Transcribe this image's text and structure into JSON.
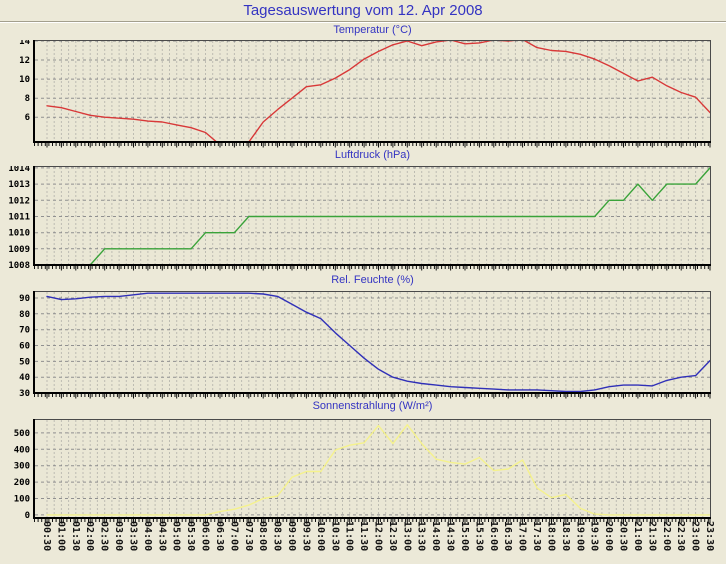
{
  "page": {
    "title": "Tagesauswertung vom 12. Apr 2008"
  },
  "colors": {
    "background": "#ECE9D8",
    "plot_background": "#EAE7D5",
    "title_blue": "#3434C2",
    "grid": "#909090",
    "axis": "#000000",
    "temperature_line": "#D83838",
    "pressure_line": "#3AA33A",
    "humidity_line": "#3030B8",
    "sun_line": "#F5F28C"
  },
  "time_labels": [
    "00:30",
    "01:00",
    "01:30",
    "02:00",
    "02:30",
    "03:00",
    "03:30",
    "04:00",
    "04:30",
    "05:00",
    "05:30",
    "06:00",
    "06:30",
    "07:00",
    "07:30",
    "08:00",
    "08:30",
    "09:00",
    "09:30",
    "10:00",
    "10:30",
    "11:00",
    "11:30",
    "12:00",
    "12:30",
    "13:00",
    "13:30",
    "14:00",
    "14:30",
    "15:00",
    "15:30",
    "16:00",
    "16:30",
    "17:00",
    "17:30",
    "18:00",
    "18:30",
    "19:00",
    "19:30",
    "20:00",
    "20:30",
    "21:00",
    "21:30",
    "22:00",
    "22:30",
    "23:00",
    "23:30"
  ],
  "chart_data": [
    {
      "type": "line",
      "title": "Temperatur (°C)",
      "unit": "°C",
      "color": "#D83838",
      "ylim": [
        3.3,
        14.1
      ],
      "yticks": [
        6,
        8,
        10,
        12,
        14
      ],
      "x": "time_labels",
      "values": [
        7.2,
        7.0,
        6.6,
        6.2,
        6.0,
        5.9,
        5.8,
        5.6,
        5.5,
        5.2,
        4.9,
        4.4,
        3.1,
        2.9,
        3.4,
        5.5,
        6.8,
        8.0,
        9.2,
        9.4,
        10.1,
        11.0,
        12.1,
        12.9,
        13.6,
        14.0,
        13.5,
        13.9,
        14.1,
        13.7,
        13.8,
        14.1,
        14.0,
        14.15,
        13.3,
        13.0,
        12.9,
        12.6,
        12.1,
        11.4,
        10.6,
        9.8,
        10.2,
        9.3,
        8.6,
        8.1,
        6.5
      ]
    },
    {
      "type": "line",
      "title": "Luftdruck (hPa)",
      "unit": "hPa",
      "color": "#3AA33A",
      "ylim": [
        1007.94,
        1014.12
      ],
      "yticks": [
        1008,
        1009,
        1010,
        1011,
        1012,
        1013,
        1014
      ],
      "x": "time_labels",
      "values": [
        1008,
        1008,
        1008,
        1008,
        1009,
        1009,
        1009,
        1009,
        1009,
        1009,
        1009,
        1010,
        1010,
        1010,
        1011,
        1011,
        1011,
        1011,
        1011,
        1011,
        1011,
        1011,
        1011,
        1011,
        1011,
        1011,
        1011,
        1011,
        1011,
        1011,
        1011,
        1011,
        1011,
        1011,
        1011,
        1011,
        1011,
        1011,
        1011,
        1012,
        1012,
        1013,
        1012,
        1013,
        1013,
        1013,
        1014
      ]
    },
    {
      "type": "line",
      "title": "Rel. Feuchte (%)",
      "unit": "%",
      "color": "#3030B8",
      "ylim": [
        29.4,
        94.4
      ],
      "yticks": [
        30,
        40,
        50,
        60,
        70,
        80,
        90
      ],
      "x": "time_labels",
      "values": [
        91,
        89,
        89.5,
        90.5,
        91,
        91,
        92,
        93,
        93,
        93,
        93,
        93,
        93,
        93,
        93,
        92.5,
        91,
        86,
        81,
        77,
        68,
        60,
        52,
        45,
        40,
        37.5,
        36,
        35,
        34,
        33.5,
        33,
        32.5,
        32,
        32,
        32,
        31.5,
        31,
        31,
        32,
        34,
        35,
        35,
        34.5,
        38,
        40,
        41,
        50.5
      ]
    },
    {
      "type": "line",
      "title": "Sonnenstrahlung (W/m²)",
      "unit": "W/m²",
      "color": "#F5F28C",
      "ylim": [
        -25,
        585
      ],
      "yticks": [
        0,
        100,
        200,
        300,
        400,
        500
      ],
      "x": "time_labels",
      "values": [
        0,
        0,
        0,
        0,
        0,
        0,
        0,
        0,
        0,
        0,
        0,
        0,
        20,
        35,
        60,
        100,
        115,
        230,
        265,
        265,
        395,
        425,
        440,
        545,
        435,
        550,
        435,
        340,
        320,
        310,
        350,
        270,
        280,
        335,
        165,
        105,
        125,
        40,
        5,
        0,
        0,
        0,
        0,
        0,
        0,
        0,
        0
      ]
    }
  ]
}
